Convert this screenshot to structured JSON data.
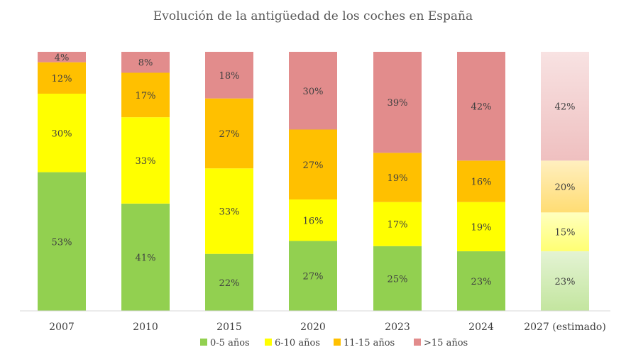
{
  "chart_data": {
    "type": "bar",
    "stacked": true,
    "percent": true,
    "title": "Evolución de la antigüedad de los coches en España",
    "xlabel": "",
    "ylabel": "",
    "ylim": [
      0,
      100
    ],
    "grid": false,
    "legend_position": "bottom",
    "categories": [
      "2007",
      "2010",
      "2015",
      "2020",
      "2023",
      "2024",
      "2027 (estimado)"
    ],
    "estimated_category": "2027 (estimado)",
    "series": [
      {
        "name": "0-5 años",
        "color": "#92d050",
        "values": [
          53,
          41,
          22,
          27,
          25,
          23,
          23
        ]
      },
      {
        "name": "6-10 años",
        "color": "#ffff00",
        "values": [
          30,
          33,
          33,
          16,
          17,
          19,
          15
        ]
      },
      {
        "name": "11-15 años",
        "color": "#ffc000",
        "values": [
          12,
          17,
          27,
          27,
          19,
          16,
          20
        ]
      },
      {
        "name": ">15 años",
        "color": "#e28c8c",
        "values": [
          4,
          8,
          18,
          30,
          39,
          42,
          42
        ]
      }
    ],
    "data_labels": [
      [
        "53%",
        "41%",
        "22%",
        "27%",
        "25%",
        "23%",
        "23%"
      ],
      [
        "30%",
        "33%",
        "33%",
        "16%",
        "17%",
        "19%",
        "15%"
      ],
      [
        "12%",
        "17%",
        "27%",
        "27%",
        "19%",
        "16%",
        "20%"
      ],
      [
        "4%",
        "8%",
        "18%",
        "30%",
        "39%",
        "42%",
        "42%"
      ]
    ]
  }
}
